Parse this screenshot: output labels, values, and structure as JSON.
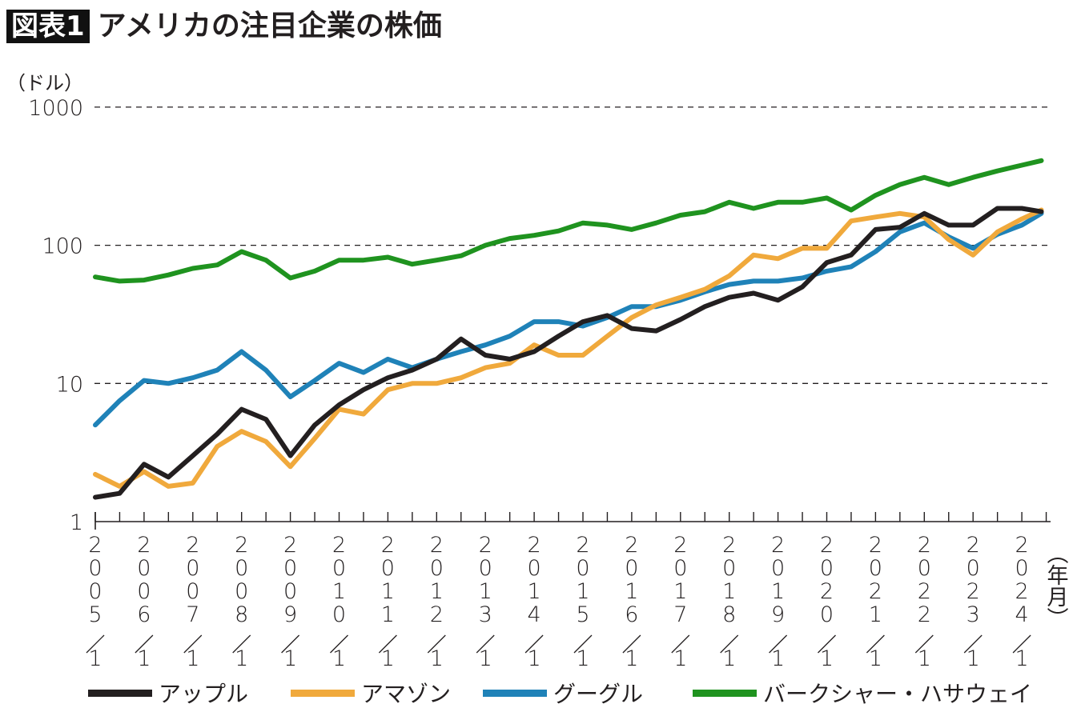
{
  "header": {
    "figure_label": "図表1",
    "title": "アメリカの注目企業の株価"
  },
  "chart_data": {
    "type": "line",
    "title": "アメリカの注目企業の株価",
    "ylabel": "（ドル）",
    "xlabel": "（年月）",
    "yscale": "log",
    "ylim": [
      1,
      1000
    ],
    "yticks": [
      "1",
      "10",
      "100",
      "1000"
    ],
    "grid": "dashed horizontal at 10, 100, 1000",
    "legend_position": "bottom",
    "xlim": [
      2005.0,
      2024.4
    ],
    "xtick_labels": [
      "2005/1",
      "2006/1",
      "2007/1",
      "2008/1",
      "2009/1",
      "2010/1",
      "2011/1",
      "2012/1",
      "2013/1",
      "2014/1",
      "2015/1",
      "2016/1",
      "2017/1",
      "2018/1",
      "2019/1",
      "2020/1",
      "2021/1",
      "2022/1",
      "2023/1",
      "2024/1"
    ],
    "x": [
      2005.0,
      2005.5,
      2006.0,
      2006.5,
      2007.0,
      2007.5,
      2008.0,
      2008.5,
      2009.0,
      2009.5,
      2010.0,
      2010.5,
      2011.0,
      2011.5,
      2012.0,
      2012.5,
      2013.0,
      2013.5,
      2014.0,
      2014.5,
      2015.0,
      2015.5,
      2016.0,
      2016.5,
      2017.0,
      2017.5,
      2018.0,
      2018.5,
      2019.0,
      2019.5,
      2020.0,
      2020.5,
      2021.0,
      2021.5,
      2022.0,
      2022.5,
      2023.0,
      2023.5,
      2024.0,
      2024.4
    ],
    "series": [
      {
        "name": "アップル",
        "color": "#231f20",
        "values": [
          1.5,
          1.6,
          2.6,
          2.1,
          3.0,
          4.3,
          6.5,
          5.5,
          3.0,
          5.0,
          7.0,
          9.0,
          11,
          12.5,
          15,
          21,
          16,
          15,
          17,
          22,
          28,
          31,
          25,
          24,
          29,
          36,
          42,
          45,
          40,
          50,
          75,
          85,
          130,
          135,
          170,
          140,
          140,
          185,
          185,
          175
        ]
      },
      {
        "name": "アマゾン",
        "color": "#f0a93c",
        "values": [
          2.2,
          1.8,
          2.3,
          1.8,
          1.9,
          3.5,
          4.5,
          3.8,
          2.5,
          4.0,
          6.5,
          6.0,
          9,
          10,
          10,
          11,
          13,
          14,
          19,
          16,
          16,
          22,
          30,
          37,
          42,
          48,
          60,
          85,
          80,
          95,
          95,
          150,
          160,
          170,
          160,
          110,
          85,
          125,
          155,
          180
        ]
      },
      {
        "name": "グーグル",
        "color": "#1f82b8",
        "values": [
          5.0,
          7.5,
          10.5,
          10,
          11,
          12.5,
          17,
          12.5,
          8.0,
          10.5,
          14,
          12,
          15,
          13,
          15,
          17,
          19,
          22,
          28,
          28,
          26,
          30,
          36,
          36,
          40,
          46,
          52,
          55,
          55,
          58,
          65,
          70,
          90,
          125,
          145,
          115,
          95,
          120,
          140,
          170
        ]
      },
      {
        "name": "バークシャー・ハサウェイ",
        "color": "#1f931f",
        "values": [
          59,
          55,
          56,
          61,
          68,
          72,
          90,
          78,
          58,
          65,
          78,
          78,
          82,
          73,
          78,
          84,
          100,
          112,
          118,
          127,
          145,
          140,
          130,
          145,
          165,
          175,
          205,
          185,
          205,
          205,
          220,
          180,
          230,
          275,
          310,
          275,
          310,
          345,
          380,
          410
        ]
      }
    ]
  }
}
